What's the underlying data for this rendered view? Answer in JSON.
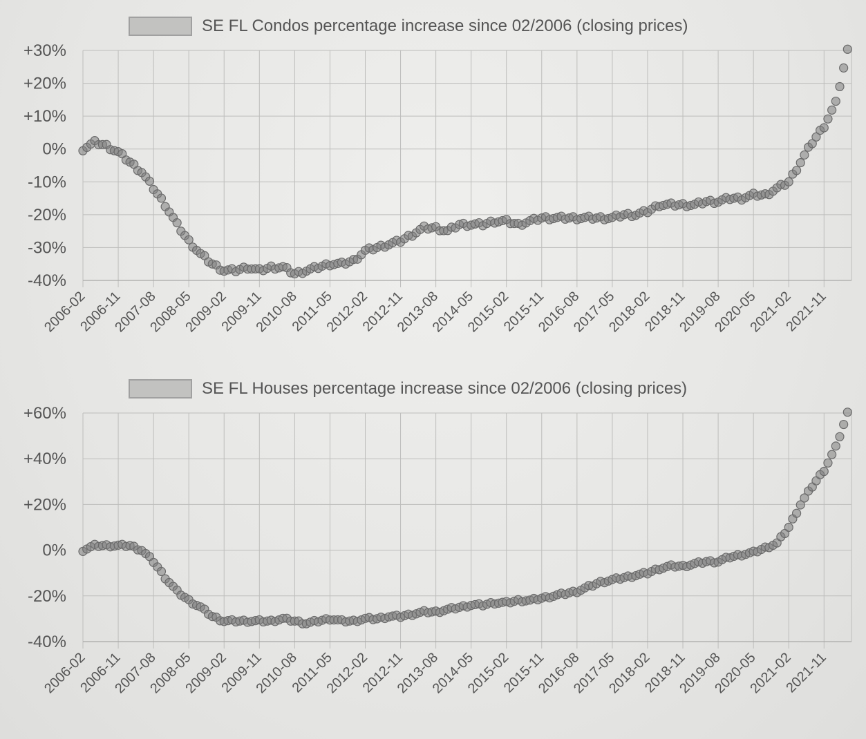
{
  "chart_data": [
    {
      "type": "line",
      "legend": "SE FL Condos percentage increase since 02/2006 (closing prices)",
      "legend_position": "top",
      "ylim": [
        -40,
        30
      ],
      "yticks": [
        30,
        20,
        10,
        0,
        -10,
        -20,
        -30,
        -40
      ],
      "ytick_labels": [
        "+30%",
        "+20%",
        "+10%",
        "0%",
        "-10%",
        "-20%",
        "-30%",
        "-40%"
      ],
      "xticks": [
        "2006-02",
        "2006-11",
        "2007-08",
        "2008-05",
        "2009-02",
        "2009-11",
        "2010-08",
        "2011-05",
        "2012-02",
        "2012-11",
        "2013-08",
        "2014-05",
        "2015-02",
        "2015-11",
        "2016-08",
        "2017-05",
        "2018-02",
        "2018-11",
        "2019-08",
        "2020-05",
        "2021-02",
        "2021-11"
      ],
      "grid": true,
      "series": [
        {
          "x": [
            "2006-02",
            "2006-05",
            "2006-08",
            "2006-11",
            "2007-02",
            "2007-05",
            "2007-08",
            "2007-11",
            "2008-02",
            "2008-05",
            "2008-08",
            "2008-11",
            "2009-02",
            "2009-05",
            "2009-08",
            "2009-11",
            "2010-02",
            "2010-05",
            "2010-08",
            "2010-11",
            "2011-02",
            "2011-05",
            "2011-08",
            "2011-11",
            "2012-02",
            "2012-05",
            "2012-08",
            "2012-11",
            "2013-02",
            "2013-05",
            "2013-08",
            "2013-11",
            "2014-02",
            "2014-05",
            "2014-08",
            "2014-11",
            "2015-02",
            "2015-05",
            "2015-08",
            "2015-11",
            "2016-02",
            "2016-05",
            "2016-08",
            "2016-11",
            "2017-02",
            "2017-05",
            "2017-08",
            "2017-11",
            "2018-02",
            "2018-05",
            "2018-08",
            "2018-11",
            "2019-02",
            "2019-05",
            "2019-08",
            "2019-11",
            "2020-02",
            "2020-05",
            "2020-08",
            "2020-11",
            "2021-02",
            "2021-05",
            "2021-08",
            "2021-11",
            "2022-02",
            "2022-05"
          ],
          "values": [
            0,
            2,
            1,
            -1,
            -4,
            -7,
            -12,
            -17,
            -23,
            -28,
            -32,
            -35,
            -37,
            -37,
            -36,
            -37,
            -36,
            -36,
            -38,
            -37,
            -36,
            -35,
            -35,
            -34,
            -31,
            -30,
            -29,
            -28,
            -26,
            -24,
            -24,
            -25,
            -23,
            -23,
            -23,
            -22,
            -22,
            -23,
            -22,
            -21,
            -21,
            -21,
            -21,
            -21,
            -21,
            -21,
            -20,
            -20,
            -19,
            -17,
            -17,
            -17,
            -17,
            -16,
            -16,
            -15,
            -15,
            -14,
            -14,
            -12,
            -10,
            -4,
            2,
            7,
            14,
            30
          ]
        }
      ]
    },
    {
      "type": "line",
      "legend": "SE FL Houses percentage increase since 02/2006 (closing prices)",
      "legend_position": "top",
      "ylim": [
        -40,
        60
      ],
      "yticks": [
        60,
        40,
        20,
        0,
        -20,
        -40
      ],
      "ytick_labels": [
        "+60%",
        "+40%",
        "+20%",
        "0%",
        "-20%",
        "-40%"
      ],
      "xticks": [
        "2006-02",
        "2006-11",
        "2007-08",
        "2008-05",
        "2009-02",
        "2009-11",
        "2010-08",
        "2011-05",
        "2012-02",
        "2012-11",
        "2013-08",
        "2014-05",
        "2015-02",
        "2015-11",
        "2016-08",
        "2017-05",
        "2018-02",
        "2018-11",
        "2019-08",
        "2020-05",
        "2021-02",
        "2021-11"
      ],
      "grid": true,
      "series": [
        {
          "x": [
            "2006-02",
            "2006-05",
            "2006-08",
            "2006-11",
            "2007-02",
            "2007-05",
            "2007-08",
            "2007-11",
            "2008-02",
            "2008-05",
            "2008-08",
            "2008-11",
            "2009-02",
            "2009-05",
            "2009-08",
            "2009-11",
            "2010-02",
            "2010-05",
            "2010-08",
            "2010-11",
            "2011-02",
            "2011-05",
            "2011-08",
            "2011-11",
            "2012-02",
            "2012-05",
            "2012-08",
            "2012-11",
            "2013-02",
            "2013-05",
            "2013-08",
            "2013-11",
            "2014-02",
            "2014-05",
            "2014-08",
            "2014-11",
            "2015-02",
            "2015-05",
            "2015-08",
            "2015-11",
            "2016-02",
            "2016-05",
            "2016-08",
            "2016-11",
            "2017-02",
            "2017-05",
            "2017-08",
            "2017-11",
            "2018-02",
            "2018-05",
            "2018-08",
            "2018-11",
            "2019-02",
            "2019-05",
            "2019-08",
            "2019-11",
            "2020-02",
            "2020-05",
            "2020-08",
            "2020-11",
            "2021-02",
            "2021-05",
            "2021-08",
            "2021-11",
            "2022-02",
            "2022-05"
          ],
          "values": [
            0,
            2,
            2,
            2,
            2,
            0,
            -5,
            -12,
            -18,
            -22,
            -25,
            -29,
            -31,
            -31,
            -31,
            -31,
            -31,
            -30,
            -31,
            -32,
            -31,
            -30,
            -31,
            -31,
            -30,
            -30,
            -29,
            -29,
            -28,
            -27,
            -27,
            -26,
            -25,
            -24,
            -24,
            -23,
            -23,
            -22,
            -22,
            -21,
            -20,
            -19,
            -18,
            -16,
            -14,
            -13,
            -12,
            -11,
            -10,
            -8,
            -7,
            -7,
            -6,
            -5,
            -5,
            -3,
            -2,
            -1,
            1,
            3,
            10,
            20,
            28,
            35,
            45,
            60
          ]
        }
      ]
    }
  ]
}
